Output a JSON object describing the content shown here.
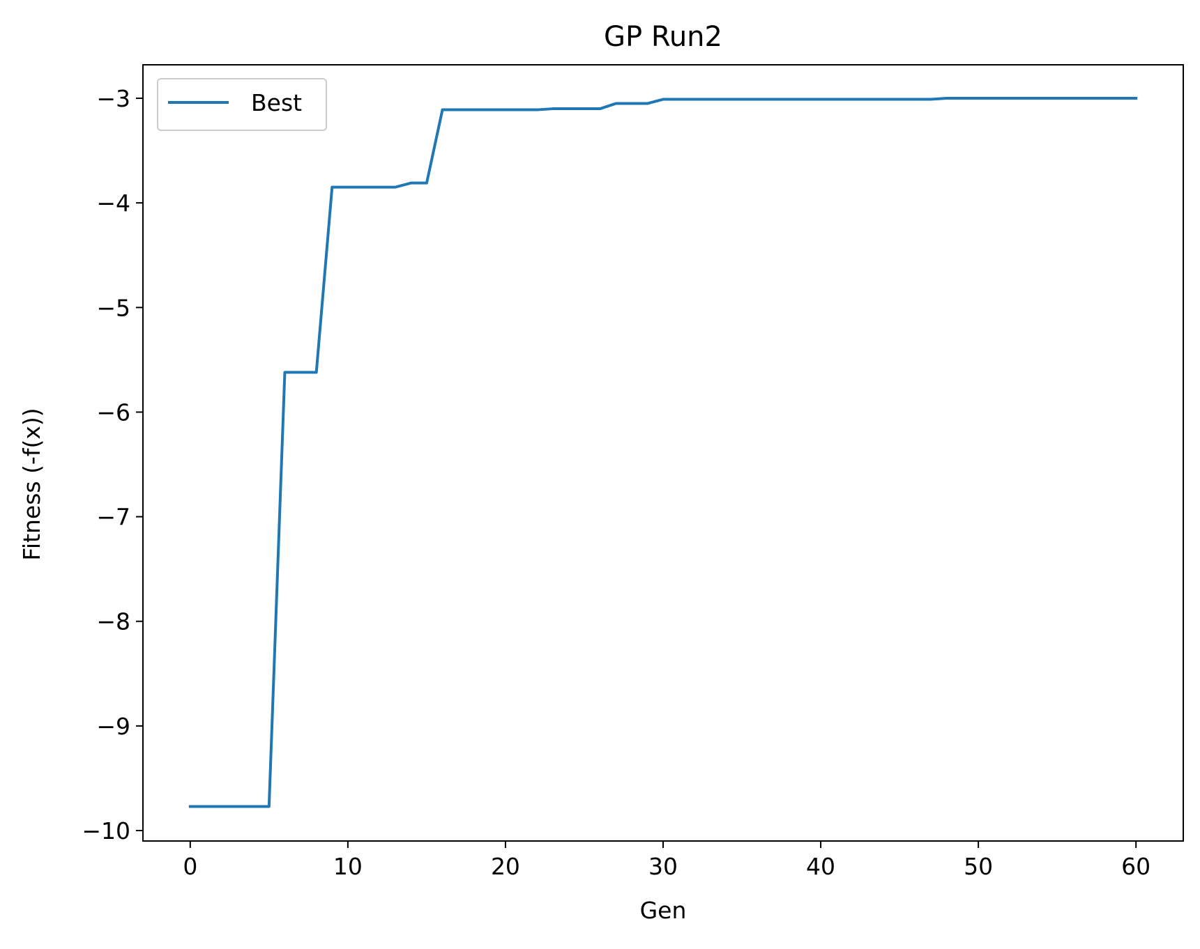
{
  "chart_data": {
    "type": "line",
    "title": "GP Run2",
    "xlabel": "Gen",
    "ylabel": "Fitness (-f(x))",
    "xlim": [
      -3,
      63
    ],
    "ylim": [
      -10.1,
      -2.68
    ],
    "x_ticks": [
      0,
      10,
      20,
      30,
      40,
      50,
      60
    ],
    "x_tick_labels": [
      "0",
      "10",
      "20",
      "30",
      "40",
      "50",
      "60"
    ],
    "y_ticks": [
      -10,
      -9,
      -8,
      -7,
      -6,
      -5,
      -4,
      -3
    ],
    "y_tick_labels": [
      "−10",
      "−9",
      "−8",
      "−7",
      "−6",
      "−5",
      "−4",
      "−3"
    ],
    "grid": false,
    "legend_position": "upper left",
    "series": [
      {
        "name": "Best",
        "color": "#1f77b4",
        "x": [
          0,
          1,
          2,
          3,
          4,
          5,
          6,
          7,
          8,
          9,
          10,
          11,
          12,
          13,
          14,
          15,
          16,
          17,
          18,
          19,
          20,
          21,
          22,
          23,
          24,
          25,
          26,
          27,
          28,
          29,
          30,
          31,
          32,
          33,
          34,
          35,
          36,
          37,
          38,
          39,
          40,
          41,
          42,
          43,
          44,
          45,
          46,
          47,
          48,
          49,
          50,
          51,
          52,
          53,
          54,
          55,
          56,
          57,
          58,
          59,
          60
        ],
        "y": [
          -9.77,
          -9.77,
          -9.77,
          -9.77,
          -9.77,
          -9.77,
          -5.62,
          -5.62,
          -5.62,
          -3.85,
          -3.85,
          -3.85,
          -3.85,
          -3.85,
          -3.81,
          -3.81,
          -3.11,
          -3.11,
          -3.11,
          -3.11,
          -3.11,
          -3.11,
          -3.11,
          -3.1,
          -3.1,
          -3.1,
          -3.1,
          -3.05,
          -3.05,
          -3.05,
          -3.01,
          -3.01,
          -3.01,
          -3.01,
          -3.01,
          -3.01,
          -3.01,
          -3.01,
          -3.01,
          -3.01,
          -3.01,
          -3.01,
          -3.01,
          -3.01,
          -3.01,
          -3.01,
          -3.01,
          -3.01,
          -3.0,
          -3.0,
          -3.0,
          -3.0,
          -3.0,
          -3.0,
          -3.0,
          -3.0,
          -3.0,
          -3.0,
          -3.0,
          -3.0,
          -3.0
        ]
      }
    ]
  }
}
